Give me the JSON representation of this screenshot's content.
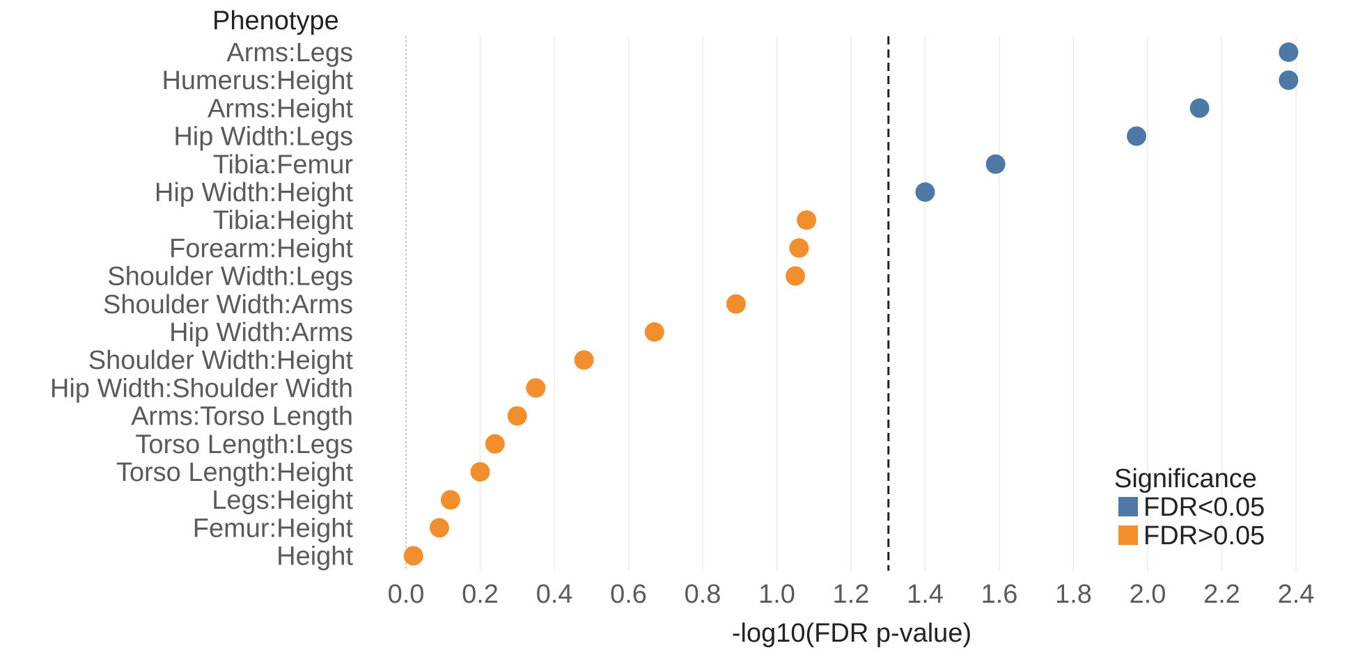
{
  "chart_data": {
    "type": "scatter",
    "title": "",
    "y_axis_title": "Phenotype",
    "xlabel": "-log10(FDR p-value)",
    "xlim": [
      -0.12,
      2.55
    ],
    "xticks": [
      0.0,
      0.2,
      0.4,
      0.6,
      0.8,
      1.0,
      1.2,
      1.4,
      1.6,
      1.8,
      2.0,
      2.2,
      2.4
    ],
    "xtick_labels": [
      "0.0",
      "0.2",
      "0.4",
      "0.6",
      "0.8",
      "1.0",
      "1.2",
      "1.4",
      "1.6",
      "1.8",
      "2.0",
      "2.2",
      "2.4"
    ],
    "threshold": 1.301,
    "zero_line": 0.0,
    "grid": "vertical",
    "categories": [
      "Arms:Legs",
      "Humerus:Height",
      "Arms:Height",
      "Hip Width:Legs",
      "Tibia:Femur",
      "Hip Width:Height",
      "Tibia:Height",
      "Forearm:Height",
      "Shoulder Width:Legs",
      "Shoulder Width:Arms",
      "Hip Width:Arms",
      "Shoulder Width:Height",
      "Hip Width:Shoulder Width",
      "Arms:Torso Length",
      "Torso Length:Legs",
      "Torso Length:Height",
      "Legs:Height",
      "Femur:Height",
      "Height"
    ],
    "values": [
      2.38,
      2.38,
      2.14,
      1.97,
      1.59,
      1.4,
      1.08,
      1.06,
      1.05,
      0.89,
      0.67,
      0.48,
      0.35,
      0.3,
      0.24,
      0.2,
      0.12,
      0.09,
      0.02
    ],
    "significance": [
      "FDR<0.05",
      "FDR<0.05",
      "FDR<0.05",
      "FDR<0.05",
      "FDR<0.05",
      "FDR<0.05",
      "FDR>0.05",
      "FDR>0.05",
      "FDR>0.05",
      "FDR>0.05",
      "FDR>0.05",
      "FDR>0.05",
      "FDR>0.05",
      "FDR>0.05",
      "FDR>0.05",
      "FDR>0.05",
      "FDR>0.05",
      "FDR>0.05",
      "FDR>0.05"
    ],
    "legend": {
      "title": "Significance",
      "placement": "bottom-right",
      "items": [
        {
          "label": "FDR<0.05",
          "color": "#4e79a7"
        },
        {
          "label": "FDR>0.05",
          "color": "#f28e2b"
        }
      ]
    }
  }
}
